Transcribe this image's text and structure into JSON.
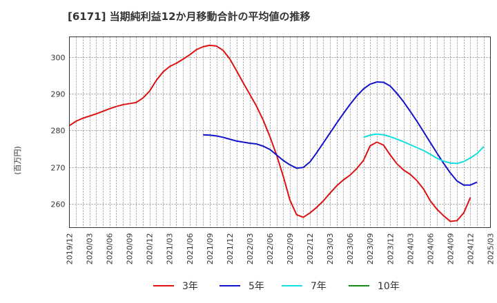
{
  "chart_data": {
    "type": "line",
    "title": "[6171]  当期純利益12か月移動合計の平均値の推移",
    "ylabel": "(百万円)",
    "xlabel": "",
    "ylim": [
      253.5,
      305.5
    ],
    "yticks": [
      260,
      270,
      280,
      290,
      300
    ],
    "x_tick_labels": [
      "2019/12",
      "2020/03",
      "2020/06",
      "2020/09",
      "2020/12",
      "2021/03",
      "2021/06",
      "2021/09",
      "2021/12",
      "2022/03",
      "2022/06",
      "2022/09",
      "2022/12",
      "2023/03",
      "2023/06",
      "2023/09",
      "2023/12",
      "2024/03",
      "2024/06",
      "2024/09",
      "2024/12",
      "2025/03"
    ],
    "x_start": "2019/12",
    "grid": true,
    "legend_position": "bottom",
    "series": [
      {
        "name": "3年",
        "color": "#dd1111",
        "start": "2019/12",
        "values": [
          281.3,
          282.5,
          283.3,
          283.9,
          284.5,
          285.2,
          285.9,
          286.5,
          287.0,
          287.3,
          287.6,
          288.8,
          290.7,
          293.6,
          295.9,
          297.4,
          298.3,
          299.4,
          300.6,
          302.0,
          302.8,
          303.2,
          303.0,
          301.8,
          299.5,
          296.3,
          293.0,
          289.8,
          286.6,
          282.8,
          278.3,
          273.3,
          267.5,
          261.0,
          257.0,
          256.3,
          257.5,
          259.0,
          260.8,
          262.9,
          264.9,
          266.5,
          267.8,
          269.6,
          271.8,
          275.8,
          276.8,
          276.0,
          273.3,
          270.9,
          269.2,
          268.0,
          266.3,
          264.0,
          260.8,
          258.5,
          256.7,
          255.2,
          255.4,
          257.5,
          261.7
        ]
      },
      {
        "name": "5年",
        "color": "#1111cc",
        "start": "2021/08",
        "values": [
          278.8,
          278.7,
          278.5,
          278.1,
          277.6,
          277.1,
          276.8,
          276.5,
          276.3,
          275.7,
          274.8,
          273.3,
          271.8,
          270.6,
          269.7,
          269.9,
          271.4,
          273.9,
          276.6,
          279.3,
          282.0,
          284.6,
          287.1,
          289.4,
          291.3,
          292.6,
          293.2,
          293.1,
          292.1,
          290.1,
          287.8,
          285.2,
          282.5,
          279.6,
          276.7,
          273.8,
          271.0,
          268.4,
          266.2,
          265.1,
          265.1,
          265.9
        ]
      },
      {
        "name": "7年",
        "color": "#11dddd",
        "start": "2023/08",
        "values": [
          278.1,
          278.7,
          279.0,
          278.8,
          278.3,
          277.6,
          276.9,
          276.1,
          275.3,
          274.5,
          273.5,
          272.4,
          271.6,
          271.1,
          271.0,
          271.5,
          272.5,
          273.7,
          275.6
        ]
      },
      {
        "name": "10年",
        "color": "#118811",
        "start": "",
        "values": []
      }
    ]
  }
}
